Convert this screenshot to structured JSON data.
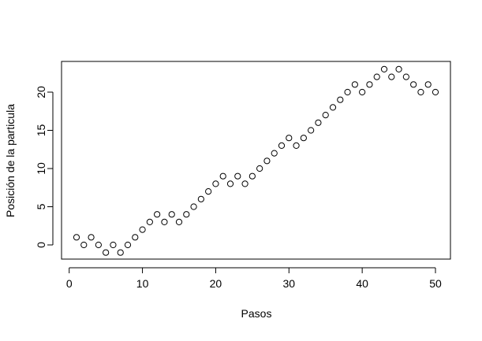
{
  "chart_data": {
    "type": "scatter",
    "title": "",
    "xlabel": "Pasos",
    "ylabel": "Posición de la particula",
    "xlim": [
      1,
      50
    ],
    "ylim": [
      -1,
      23
    ],
    "x_ticks": [
      0,
      10,
      20,
      30,
      40,
      50
    ],
    "y_ticks": [
      0,
      5,
      10,
      15,
      20
    ],
    "grid": false,
    "legend": "none",
    "marker": "open-circle",
    "marker_color": "#000000",
    "x": [
      1,
      2,
      3,
      4,
      5,
      6,
      7,
      8,
      9,
      10,
      11,
      12,
      13,
      14,
      15,
      16,
      17,
      18,
      19,
      20,
      21,
      22,
      23,
      24,
      25,
      26,
      27,
      28,
      29,
      30,
      31,
      32,
      33,
      34,
      35,
      36,
      37,
      38,
      39,
      40,
      41,
      42,
      43,
      44,
      45,
      46,
      47,
      48,
      49,
      50
    ],
    "y": [
      1,
      0,
      1,
      0,
      -1,
      0,
      -1,
      0,
      1,
      2,
      3,
      4,
      3,
      4,
      3,
      4,
      5,
      6,
      7,
      8,
      9,
      8,
      9,
      8,
      9,
      10,
      11,
      12,
      13,
      14,
      13,
      14,
      15,
      16,
      17,
      18,
      19,
      20,
      21,
      20,
      21,
      22,
      23,
      22,
      23,
      22,
      21,
      20,
      21,
      20
    ]
  }
}
